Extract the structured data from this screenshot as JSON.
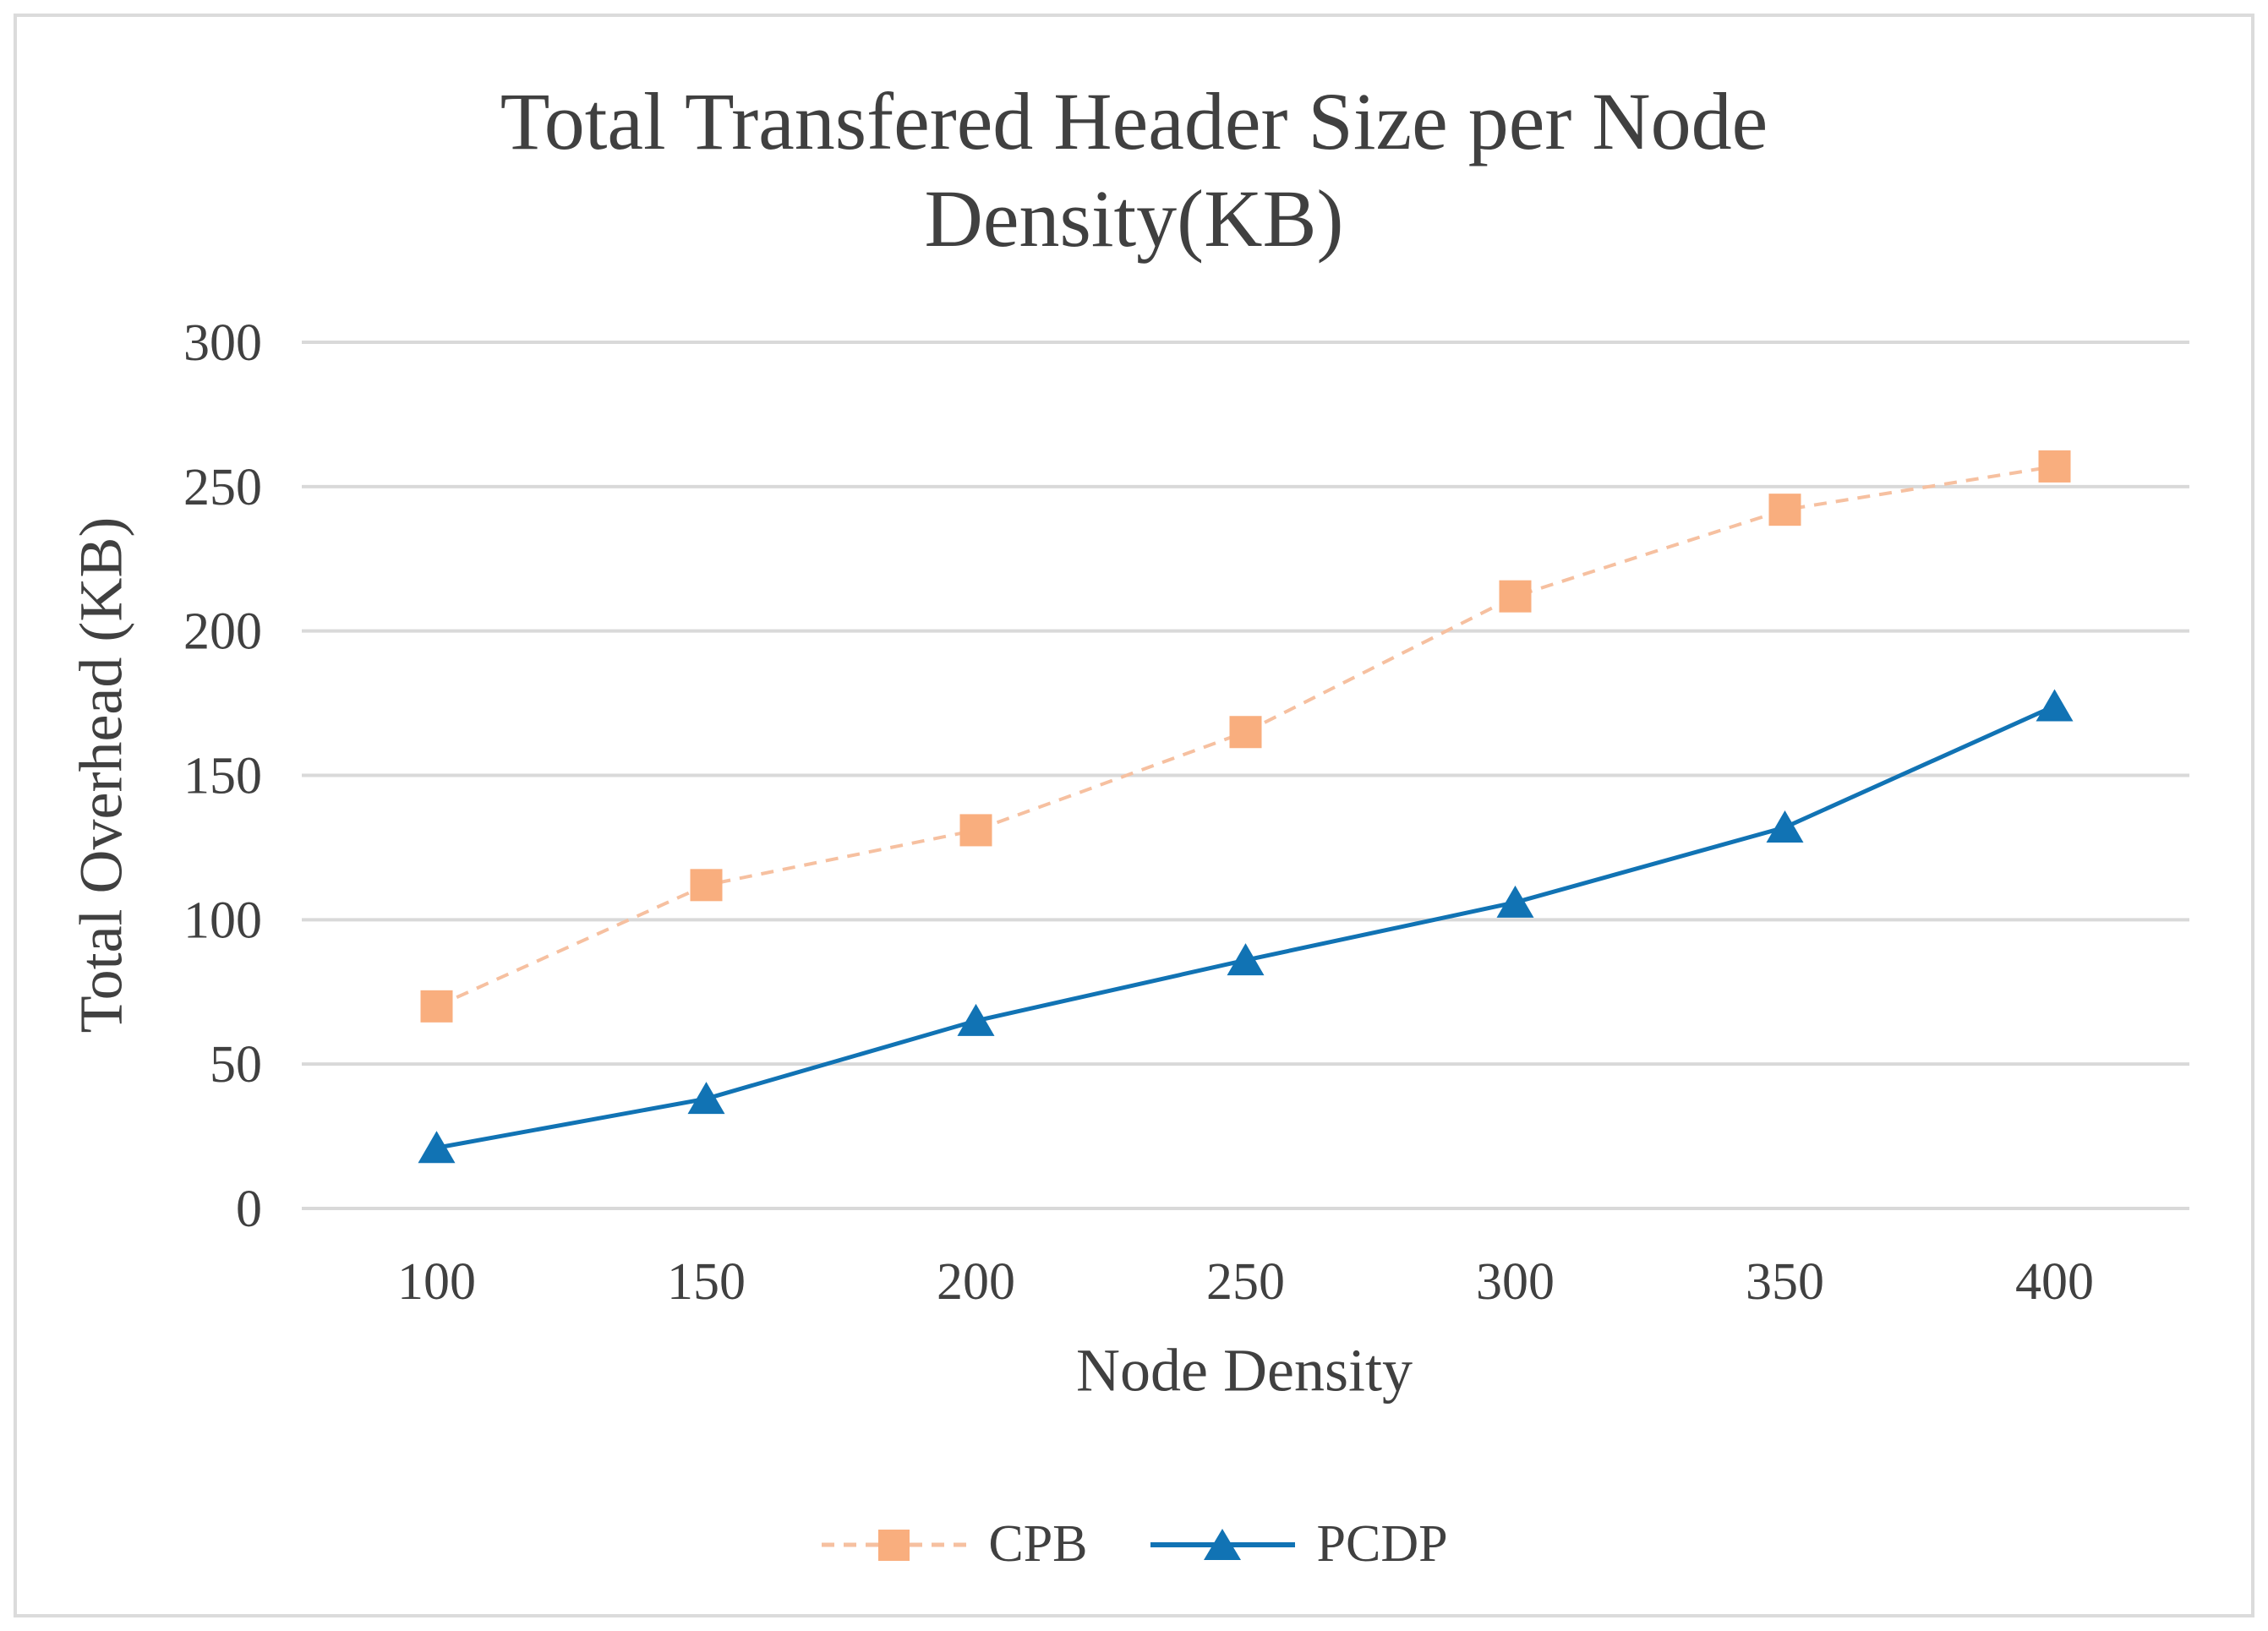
{
  "figure": {
    "title_lines": [
      "Total Transfered Header Size per Node",
      "Density(KB)"
    ],
    "y_axis_title": "Total Overhead (KB)",
    "x_axis_title": "Node Density"
  },
  "colors": {
    "cpb": "#F9AE7E",
    "cpb_line": "#F6C0A0",
    "pcdp": "#1173B4",
    "grid": "#D9D9D9",
    "text": "#404040",
    "frame": "#DBDBDB"
  },
  "chart_data": {
    "type": "line",
    "title": "Total Transfered Header Size per Node Density(KB)",
    "xlabel": "Node Density",
    "ylabel": "Total Overhead (KB)",
    "categories": [
      100,
      150,
      200,
      250,
      300,
      350,
      400
    ],
    "series": [
      {
        "name": "CPB",
        "values": [
          70,
          112,
          131,
          165,
          212,
          242,
          257
        ],
        "color": "#F9AE7E",
        "line_style": "dashed",
        "marker": "square"
      },
      {
        "name": "PCDP",
        "values": [
          21,
          38,
          65,
          86,
          106,
          132,
          174
        ],
        "color": "#1173B4",
        "line_style": "solid",
        "marker": "triangle"
      }
    ],
    "ylim": [
      0,
      300
    ],
    "yticks": [
      0,
      50,
      100,
      150,
      200,
      250,
      300
    ],
    "grid": "horizontal",
    "legend_position": "bottom"
  }
}
